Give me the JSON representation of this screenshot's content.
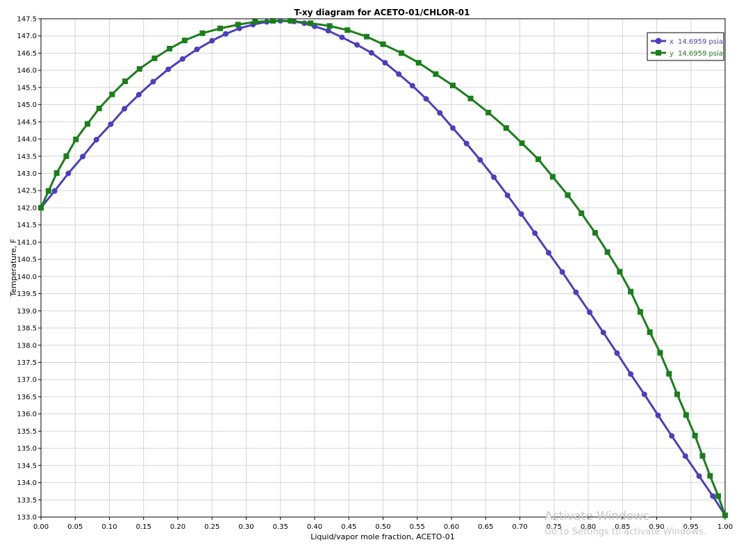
{
  "chart_data": {
    "type": "line",
    "title": "T-xy diagram for ACETO-01/CHLOR-01",
    "xlabel": "Liquid/vapor mole fraction, ACETO-01",
    "ylabel": "Temperature, F",
    "xlim": [
      0.0,
      1.0
    ],
    "ylim": [
      133.0,
      147.5
    ],
    "x_ticks": [
      "0.00",
      "0.05",
      "0.10",
      "0.15",
      "0.20",
      "0.25",
      "0.30",
      "0.35",
      "0.40",
      "0.45",
      "0.50",
      "0.55",
      "0.60",
      "0.65",
      "0.70",
      "0.75",
      "0.80",
      "0.85",
      "0.90",
      "0.95",
      "1.00"
    ],
    "y_ticks": [
      "133.0",
      "133.5",
      "134.0",
      "134.5",
      "135.0",
      "135.5",
      "136.0",
      "136.5",
      "137.0",
      "137.5",
      "138.0",
      "138.5",
      "139.0",
      "139.5",
      "140.0",
      "140.5",
      "141.0",
      "141.5",
      "142.0",
      "142.5",
      "143.0",
      "143.5",
      "144.0",
      "144.5",
      "145.0",
      "145.5",
      "146.0",
      "146.5",
      "147.0",
      "147.5"
    ],
    "grid": true,
    "legend_position": "top-right",
    "series": [
      {
        "name": "14.6959 psia",
        "legend_prefix": "x",
        "color": "#4b3fbf",
        "marker": "circle",
        "points": [
          [
            0.0,
            142.0
          ],
          [
            0.02,
            142.49
          ],
          [
            0.04,
            143.0
          ],
          [
            0.061,
            143.49
          ],
          [
            0.081,
            143.98
          ],
          [
            0.102,
            144.43
          ],
          [
            0.122,
            144.88
          ],
          [
            0.143,
            145.29
          ],
          [
            0.164,
            145.67
          ],
          [
            0.186,
            146.03
          ],
          [
            0.207,
            146.33
          ],
          [
            0.228,
            146.61
          ],
          [
            0.25,
            146.86
          ],
          [
            0.27,
            147.06
          ],
          [
            0.29,
            147.22
          ],
          [
            0.31,
            147.33
          ],
          [
            0.33,
            147.41
          ],
          [
            0.35,
            147.44
          ],
          [
            0.37,
            147.42
          ],
          [
            0.385,
            147.37
          ],
          [
            0.4,
            147.28
          ],
          [
            0.42,
            147.15
          ],
          [
            0.44,
            146.96
          ],
          [
            0.462,
            146.74
          ],
          [
            0.483,
            146.51
          ],
          [
            0.503,
            146.22
          ],
          [
            0.523,
            145.89
          ],
          [
            0.543,
            145.55
          ],
          [
            0.563,
            145.17
          ],
          [
            0.583,
            144.76
          ],
          [
            0.602,
            144.32
          ],
          [
            0.622,
            143.87
          ],
          [
            0.642,
            143.39
          ],
          [
            0.662,
            142.89
          ],
          [
            0.682,
            142.36
          ],
          [
            0.702,
            141.82
          ],
          [
            0.722,
            141.26
          ],
          [
            0.742,
            140.69
          ],
          [
            0.762,
            140.13
          ],
          [
            0.782,
            139.54
          ],
          [
            0.802,
            138.96
          ],
          [
            0.822,
            138.37
          ],
          [
            0.842,
            137.77
          ],
          [
            0.862,
            137.16
          ],
          [
            0.882,
            136.57
          ],
          [
            0.902,
            135.96
          ],
          [
            0.922,
            135.36
          ],
          [
            0.942,
            134.77
          ],
          [
            0.962,
            134.19
          ],
          [
            0.982,
            133.61
          ],
          [
            1.0,
            133.05
          ]
        ]
      },
      {
        "name": "14.6959 psia",
        "legend_prefix": "y",
        "color": "#1a7f1a",
        "marker": "square",
        "points": [
          [
            0.0,
            142.0
          ],
          [
            0.011,
            142.49
          ],
          [
            0.023,
            143.01
          ],
          [
            0.037,
            143.5
          ],
          [
            0.051,
            143.99
          ],
          [
            0.068,
            144.44
          ],
          [
            0.085,
            144.89
          ],
          [
            0.104,
            145.3
          ],
          [
            0.123,
            145.68
          ],
          [
            0.144,
            146.04
          ],
          [
            0.166,
            146.35
          ],
          [
            0.188,
            146.63
          ],
          [
            0.21,
            146.87
          ],
          [
            0.236,
            147.08
          ],
          [
            0.262,
            147.22
          ],
          [
            0.288,
            147.33
          ],
          [
            0.313,
            147.41
          ],
          [
            0.339,
            147.44
          ],
          [
            0.365,
            147.44
          ],
          [
            0.394,
            147.37
          ],
          [
            0.422,
            147.29
          ],
          [
            0.448,
            147.17
          ],
          [
            0.476,
            146.98
          ],
          [
            0.5,
            146.76
          ],
          [
            0.527,
            146.5
          ],
          [
            0.552,
            146.22
          ],
          [
            0.577,
            145.89
          ],
          [
            0.602,
            145.56
          ],
          [
            0.628,
            145.18
          ],
          [
            0.654,
            144.77
          ],
          [
            0.68,
            144.32
          ],
          [
            0.703,
            143.88
          ],
          [
            0.727,
            143.41
          ],
          [
            0.748,
            142.9
          ],
          [
            0.77,
            142.37
          ],
          [
            0.79,
            141.84
          ],
          [
            0.81,
            141.27
          ],
          [
            0.828,
            140.71
          ],
          [
            0.846,
            140.14
          ],
          [
            0.862,
            139.56
          ],
          [
            0.876,
            138.97
          ],
          [
            0.89,
            138.38
          ],
          [
            0.905,
            137.78
          ],
          [
            0.918,
            137.17
          ],
          [
            0.93,
            136.57
          ],
          [
            0.943,
            135.97
          ],
          [
            0.956,
            135.37
          ],
          [
            0.967,
            134.78
          ],
          [
            0.978,
            134.2
          ],
          [
            0.99,
            133.61
          ],
          [
            1.0,
            133.05
          ]
        ]
      }
    ]
  },
  "watermark": {
    "title": "Activate Windows",
    "subtitle": "Go to Settings to activate Windows."
  }
}
